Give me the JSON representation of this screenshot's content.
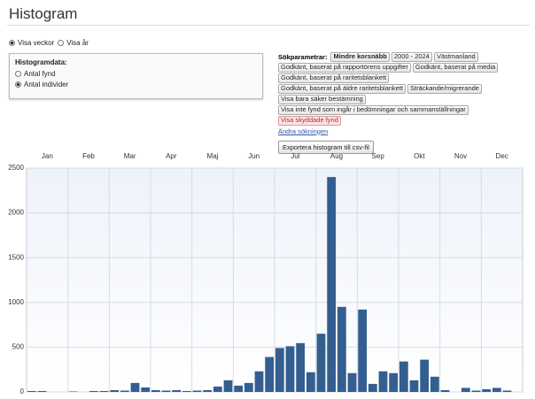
{
  "header": {
    "title": "Histogram"
  },
  "view_options": [
    {
      "label": "Visa veckor",
      "checked": true
    },
    {
      "label": "Visa år",
      "checked": false
    }
  ],
  "histogram_data": {
    "title": "Histogramdata:",
    "options": [
      {
        "label": "Antal fynd",
        "checked": false
      },
      {
        "label": "Antal individer",
        "checked": true
      }
    ]
  },
  "search_params": {
    "label": "Sökparametrar:",
    "rows": [
      [
        {
          "text": "Mindre korsnäbb",
          "bold": true
        },
        {
          "text": "2000 - 2024"
        },
        {
          "text": "Västmanland"
        }
      ],
      [
        {
          "text": "Godkänt, baserat på rapportörens uppgifter"
        },
        {
          "text": "Godkänt, baserat på media"
        }
      ],
      [
        {
          "text": "Godkänt, baserat på raritetsblankett"
        }
      ],
      [
        {
          "text": "Godkänt, baserat på äldre raritetsblankett"
        },
        {
          "text": "Sträckande/migrerande"
        }
      ],
      [
        {
          "text": "Visa bara säker bestämning"
        }
      ],
      [
        {
          "text": "Visa inte fynd som ingår i bedömningar och sammanställningar"
        }
      ],
      [
        {
          "text": "Visa skyddade fynd",
          "highlight": true
        }
      ]
    ],
    "link": "Ändra sökningen",
    "export_button": "Exportera histogram till csv-fil"
  },
  "chart_data": {
    "type": "bar",
    "month_labels": [
      "Jan",
      "Feb",
      "Mar",
      "Apr",
      "Maj",
      "Jun",
      "Jul",
      "Aug",
      "Sep",
      "Okt",
      "Nov",
      "Dec"
    ],
    "categories": [
      null,
      null,
      null,
      null,
      null,
      null,
      null,
      null,
      null,
      null,
      null,
      null,
      null,
      null,
      null,
      null,
      null,
      null,
      null,
      null,
      null,
      null,
      null,
      null,
      null,
      null,
      null,
      null,
      null,
      null,
      null,
      null,
      null,
      null,
      null,
      null,
      null,
      null,
      null,
      null,
      null,
      null,
      null,
      null,
      null,
      null,
      null,
      null
    ],
    "values": [
      10,
      10,
      0,
      0,
      5,
      0,
      10,
      10,
      20,
      15,
      100,
      50,
      20,
      15,
      20,
      10,
      15,
      20,
      60,
      130,
      70,
      100,
      230,
      390,
      490,
      510,
      545,
      220,
      650,
      2400,
      950,
      210,
      920,
      90,
      230,
      210,
      340,
      130,
      360,
      170,
      20,
      0,
      45,
      15,
      30,
      45,
      15,
      0
    ],
    "color": "#335e8f",
    "ylim": [
      0,
      2500
    ],
    "yticks": [
      0,
      500,
      1000,
      1500,
      2000,
      2500
    ],
    "grid": true
  }
}
